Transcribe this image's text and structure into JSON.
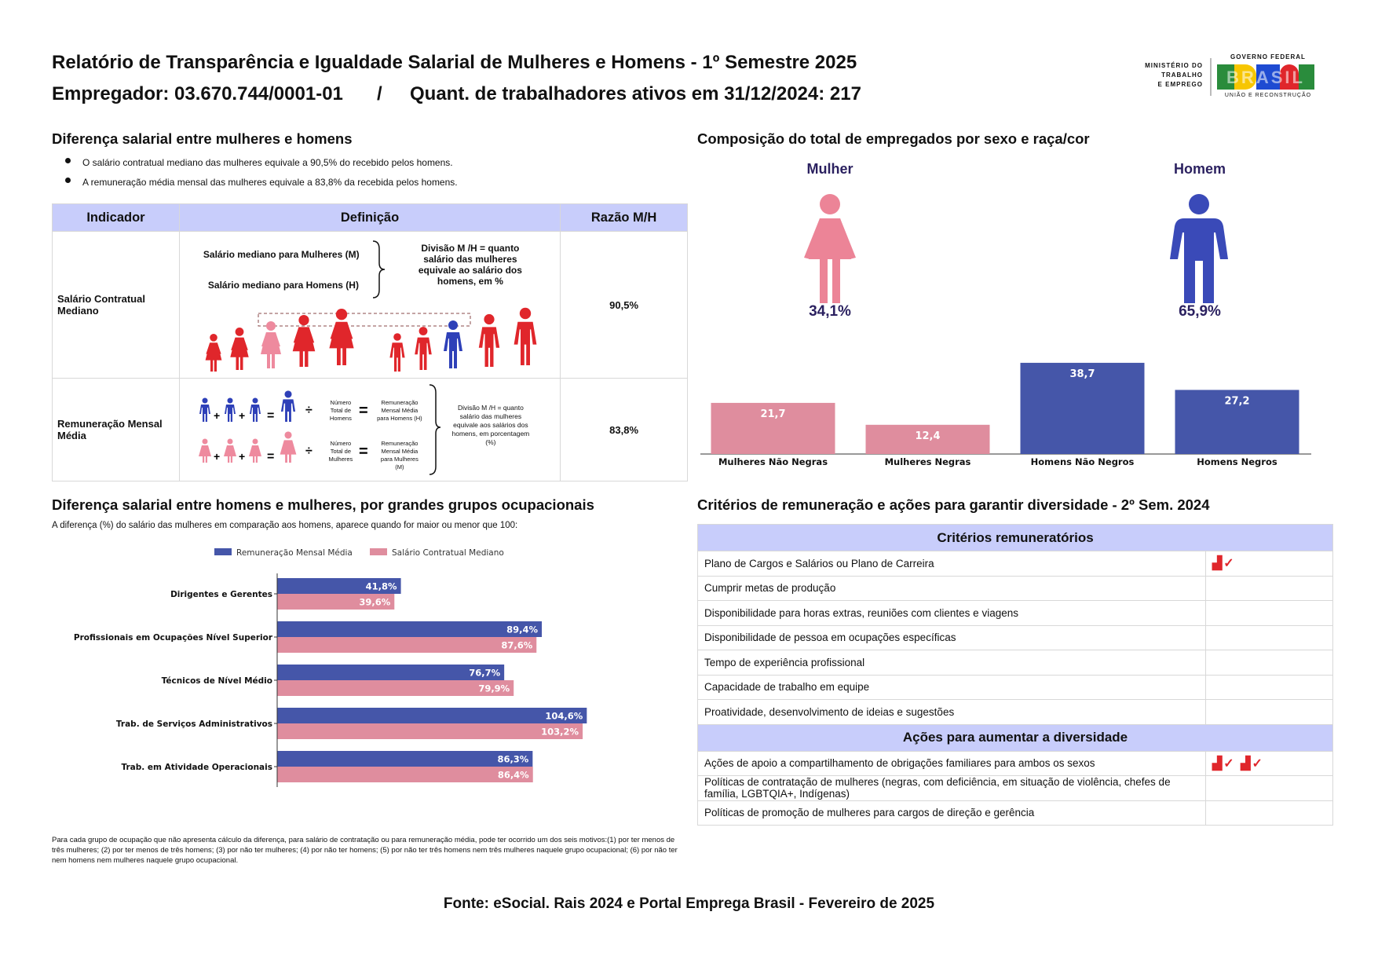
{
  "header": {
    "title": "Relatório de Transparência e Igualdade Salarial de Mulheres e Homens - 1º Semestre 2025",
    "employer": "Empregador: 03.670.744/0001-01",
    "separator": "/",
    "workers": "Quant. de trabalhadores ativos em 31/12/2024: 217"
  },
  "logo": {
    "ministry_line1": "MINISTÉRIO DO",
    "ministry_line2": "TRABALHO",
    "ministry_line3": "E EMPREGO",
    "gov": "GOVERNO FEDERAL",
    "brasil": "BRASIL",
    "slogan": "UNIÃO E RECONSTRUÇÃO",
    "colors": [
      "#2a8c3c",
      "#f7c600",
      "#1e4bd2",
      "#e0262b"
    ]
  },
  "salary_section": {
    "title": "Diferença salarial entre mulheres e homens",
    "bullet1": "O salário contratual mediano das mulheres equivale a 90,5% do recebido pelos homens.",
    "bullet2": "A remuneração média mensal das mulheres equivale a 83,8% da recebida pelos homens.",
    "table": {
      "col_indicator": "Indicador",
      "col_definition": "Definição",
      "col_ratio": "Razão M/H",
      "row1": {
        "indicator": "Salário Contratual Mediano",
        "def_women": "Salário mediano para Mulheres (M)",
        "def_men": "Salário mediano para Homens (H)",
        "def_division": "Divisão M /H = quanto salário das mulheres equivale ao salário dos homens, em %",
        "ratio": "90,5%"
      },
      "row2": {
        "indicator": "Remuneração Mensal Média",
        "num_men": "Número Total de Homens",
        "rem_men": "Remuneração Mensal Média para Homens (H)",
        "num_women": "Número Total de Mulheres",
        "rem_women": "Remuneração Mensal Média para Mulheres (M)",
        "def_division": "Divisão M /H = quanto salário das mulheres equivale aos salários dos homens, em porcentagem (%)",
        "ratio": "83,8%"
      }
    },
    "colors": {
      "woman_red": "#e0262b",
      "woman_pink": "#ee8a9e",
      "man_blue": "#2e40b8"
    }
  },
  "composition": {
    "title": "Composição do total de empregados por sexo e raça/cor",
    "woman_label": "Mulher",
    "woman_pct": "34,1%",
    "man_label": "Homem",
    "man_pct": "65,9%",
    "colors": {
      "woman": "#ec8497",
      "man": "#3a4ab8"
    }
  },
  "chart_data": [
    {
      "type": "bar",
      "categories": [
        "Mulheres Não Negras",
        "Mulheres Negras",
        "Homens Não Negros",
        "Homens Negros"
      ],
      "values": [
        21.7,
        12.4,
        38.7,
        27.2
      ],
      "labels": [
        "21,7",
        "12,4",
        "38,7",
        "27,2"
      ],
      "colors": [
        "#df8d9e",
        "#df8d9e",
        "#4556a9",
        "#4556a9"
      ],
      "ylim": [
        0,
        40
      ]
    },
    {
      "type": "bar",
      "orientation": "horizontal",
      "categories": [
        "Dirigentes e Gerentes",
        "Profissionais em Ocupações Nível Superior",
        "Técnicos de Nível Médio",
        "Trab. de Serviços Administrativos",
        "Trab. em Atividade Operacionais"
      ],
      "series": [
        {
          "name": "Remuneração Mensal Média",
          "values": [
            41.8,
            89.4,
            76.7,
            104.6,
            86.3
          ],
          "labels": [
            "41,8%",
            "89,4%",
            "76,7%",
            "104,6%",
            "86,3%"
          ],
          "color": "#4556a9"
        },
        {
          "name": "Salário Contratual Mediano",
          "values": [
            39.6,
            87.6,
            79.9,
            103.2,
            86.4
          ],
          "labels": [
            "39,6%",
            "87,6%",
            "79,9%",
            "103,2%",
            "86,4%"
          ],
          "color": "#df8d9e"
        }
      ],
      "xlim": [
        0,
        110
      ]
    }
  ],
  "occupational": {
    "title": "Diferença salarial entre homens e mulheres, por grandes grupos ocupacionais",
    "subtitle": "A diferença (%) do salário das mulheres em comparação aos homens, aparece quando for maior ou menor que 100:",
    "footnote": "Para cada grupo de ocupação que não apresenta cálculo da diferença, para salário de contratação ou para remuneração média, pode ter ocorrido um dos seis motivos:(1) por ter menos de três mulheres; (2) por ter menos de três homens; (3) por não ter mulheres; (4) por não ter homens; (5) por não ter três homens nem três mulheres naquele grupo ocupacional; (6) por não ter nem homens nem mulheres naquele grupo ocupacional."
  },
  "criteria": {
    "title": "Critérios de remuneração e ações para garantir diversidade - 2º Sem. 2024",
    "remuneration_header": "Critérios remuneratórios",
    "remuneration_items": [
      {
        "label": "Plano de Cargos e Salários ou Plano de Carreira",
        "icons": "▟✓"
      },
      {
        "label": "Cumprir metas de produção",
        "icons": ""
      },
      {
        "label": "Disponibilidade para horas extras, reuniões com clientes e viagens",
        "icons": ""
      },
      {
        "label": "Disponibilidade de pessoa em ocupações específicas",
        "icons": ""
      },
      {
        "label": "Tempo de experiência profissional",
        "icons": ""
      },
      {
        "label": "Capacidade de trabalho em equipe",
        "icons": ""
      },
      {
        "label": "Proatividade, desenvolvimento de ideias e sugestões",
        "icons": ""
      }
    ],
    "diversity_header": "Ações para aumentar a diversidade",
    "diversity_items": [
      {
        "label": "Ações de apoio a compartilhamento de obrigações familiares para ambos os sexos",
        "icons": "▟✓ ▟✓"
      },
      {
        "label": "Políticas de contratação de mulheres (negras, com deficiência, em situação de violência, chefes de família, LGBTQIA+, Indígenas)",
        "icons": ""
      },
      {
        "label": "Políticas de promoção de mulheres para cargos de direção e gerência",
        "icons": ""
      }
    ]
  },
  "footer": {
    "source": "Fonte: eSocial. Rais 2024 e Portal Emprega Brasil - Fevereiro de 2025"
  }
}
